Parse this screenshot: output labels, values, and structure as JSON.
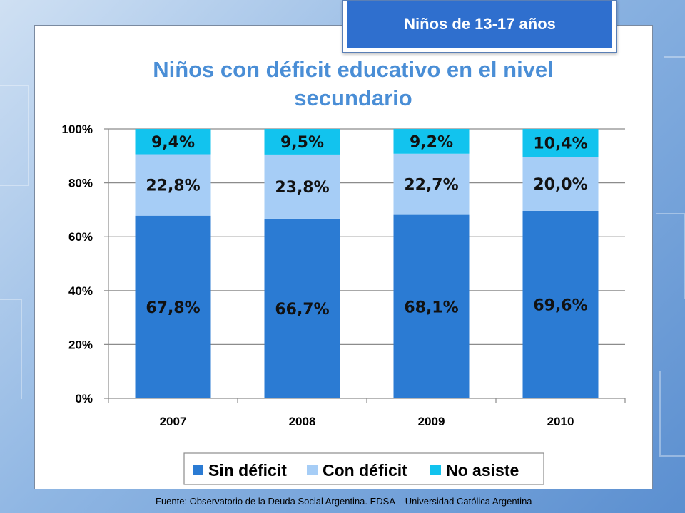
{
  "badge": "Niños de 13-17 años",
  "source": "Fuente: Observatorio de  la Deuda Social Argentina. EDSA – Universidad Católica Argentina",
  "colors": {
    "sin_deficit": "#2b7bd3",
    "con_deficit": "#a6cdf6",
    "no_asiste": "#12c3ee",
    "title": "#4a8ed6",
    "badge_bg": "#2f6fce"
  },
  "chart_data": {
    "type": "bar",
    "stacked": true,
    "title": "Niños con déficit educativo en el nivel secundario",
    "categories": [
      "2007",
      "2008",
      "2009",
      "2010"
    ],
    "series": [
      {
        "name": "Sin déficit",
        "values": [
          67.8,
          66.7,
          68.1,
          69.6
        ],
        "labels": [
          "67,8%",
          "66,7%",
          "68,1%",
          "69,6%"
        ]
      },
      {
        "name": "Con déficit",
        "values": [
          22.8,
          23.8,
          22.7,
          20.0
        ],
        "labels": [
          "22,8%",
          "23,8%",
          "22,7%",
          "20,0%"
        ]
      },
      {
        "name": "No asiste",
        "values": [
          9.4,
          9.5,
          9.2,
          10.4
        ],
        "labels": [
          "9,4%",
          "9,5%",
          "9,2%",
          "10,4%"
        ]
      }
    ],
    "ylim": [
      0,
      100
    ],
    "yticks": [
      "0%",
      "20%",
      "40%",
      "60%",
      "80%",
      "100%"
    ],
    "grid": true,
    "legend_position": "bottom"
  }
}
